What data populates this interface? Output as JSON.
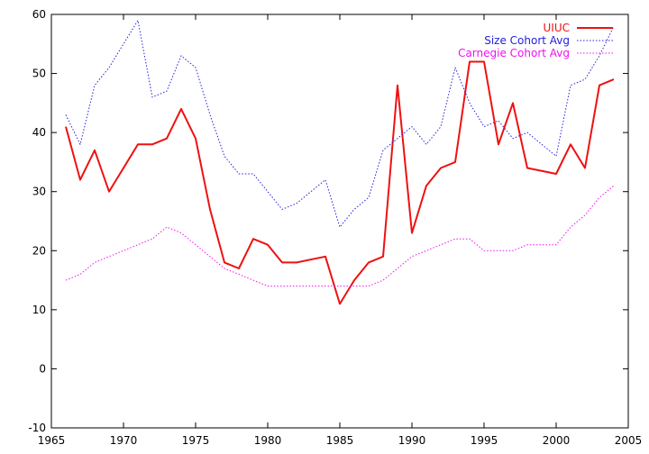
{
  "chart_data": {
    "type": "line",
    "title": "",
    "xlabel": "",
    "ylabel": "",
    "xlim": [
      1965,
      2005
    ],
    "ylim": [
      -10,
      60
    ],
    "x_ticks": [
      "1965",
      "1970",
      "1975",
      "1980",
      "1985",
      "1990",
      "1995",
      "2000",
      "2005"
    ],
    "y_ticks": [
      "-10",
      "0",
      "10",
      "20",
      "30",
      "40",
      "50",
      "60"
    ],
    "grid": false,
    "legend_position": "top-right",
    "series": [
      {
        "name": "UIUC",
        "color": "#ee1111",
        "style": "solid",
        "points": [
          [
            1966,
            41
          ],
          [
            1967,
            32
          ],
          [
            1968,
            37
          ],
          [
            1969,
            30
          ],
          [
            1971,
            38
          ],
          [
            1972,
            38
          ],
          [
            1973,
            39
          ],
          [
            1974,
            44
          ],
          [
            1975,
            39
          ],
          [
            1976,
            27
          ],
          [
            1977,
            18
          ],
          [
            1978,
            17
          ],
          [
            1979,
            22
          ],
          [
            1980,
            21
          ],
          [
            1981,
            18
          ],
          [
            1982,
            18
          ],
          [
            1984,
            19
          ],
          [
            1985,
            11
          ],
          [
            1986,
            15
          ],
          [
            1987,
            18
          ],
          [
            1988,
            19
          ],
          [
            1989,
            48
          ],
          [
            1990,
            23
          ],
          [
            1991,
            31
          ],
          [
            1992,
            34
          ],
          [
            1993,
            35
          ],
          [
            1994,
            52
          ],
          [
            1995,
            52
          ],
          [
            1996,
            38
          ],
          [
            1997,
            45
          ],
          [
            1998,
            34
          ],
          [
            2000,
            33
          ],
          [
            2001,
            38
          ],
          [
            2002,
            34
          ],
          [
            2003,
            48
          ],
          [
            2004,
            49
          ]
        ]
      },
      {
        "name": "Size Cohort Avg",
        "color": "#2222dd",
        "style": "dotted",
        "points": [
          [
            1966,
            43
          ],
          [
            1967,
            38
          ],
          [
            1968,
            48
          ],
          [
            1969,
            51
          ],
          [
            1970,
            55
          ],
          [
            1971,
            59
          ],
          [
            1972,
            46
          ],
          [
            1973,
            47
          ],
          [
            1974,
            53
          ],
          [
            1975,
            51
          ],
          [
            1976,
            43
          ],
          [
            1977,
            36
          ],
          [
            1978,
            33
          ],
          [
            1979,
            33
          ],
          [
            1980,
            30
          ],
          [
            1981,
            27
          ],
          [
            1982,
            28
          ],
          [
            1983,
            30
          ],
          [
            1984,
            32
          ],
          [
            1985,
            24
          ],
          [
            1986,
            27
          ],
          [
            1987,
            29
          ],
          [
            1988,
            37
          ],
          [
            1989,
            39
          ],
          [
            1990,
            41
          ],
          [
            1991,
            38
          ],
          [
            1992,
            41
          ],
          [
            1993,
            51
          ],
          [
            1994,
            45
          ],
          [
            1995,
            41
          ],
          [
            1996,
            42
          ],
          [
            1997,
            39
          ],
          [
            1998,
            40
          ],
          [
            2000,
            36
          ],
          [
            2001,
            48
          ],
          [
            2002,
            49
          ],
          [
            2003,
            53
          ],
          [
            2004,
            58
          ]
        ]
      },
      {
        "name": "Carnegie Cohort Avg",
        "color": "#ee11ee",
        "style": "dotted",
        "points": [
          [
            1966,
            15
          ],
          [
            1967,
            16
          ],
          [
            1968,
            18
          ],
          [
            1969,
            19
          ],
          [
            1970,
            20
          ],
          [
            1971,
            21
          ],
          [
            1972,
            22
          ],
          [
            1973,
            24
          ],
          [
            1974,
            23
          ],
          [
            1975,
            21
          ],
          [
            1976,
            19
          ],
          [
            1977,
            17
          ],
          [
            1978,
            16
          ],
          [
            1979,
            15
          ],
          [
            1980,
            14
          ],
          [
            1981,
            14
          ],
          [
            1982,
            14
          ],
          [
            1983,
            14
          ],
          [
            1984,
            14
          ],
          [
            1985,
            14
          ],
          [
            1986,
            14
          ],
          [
            1987,
            14
          ],
          [
            1988,
            15
          ],
          [
            1989,
            17
          ],
          [
            1990,
            19
          ],
          [
            1991,
            20
          ],
          [
            1992,
            21
          ],
          [
            1993,
            22
          ],
          [
            1994,
            22
          ],
          [
            1995,
            20
          ],
          [
            1996,
            20
          ],
          [
            1997,
            20
          ],
          [
            1998,
            21
          ],
          [
            1999,
            21
          ],
          [
            2000,
            21
          ],
          [
            2001,
            24
          ],
          [
            2002,
            26
          ],
          [
            2003,
            29
          ],
          [
            2004,
            31
          ]
        ]
      }
    ]
  }
}
